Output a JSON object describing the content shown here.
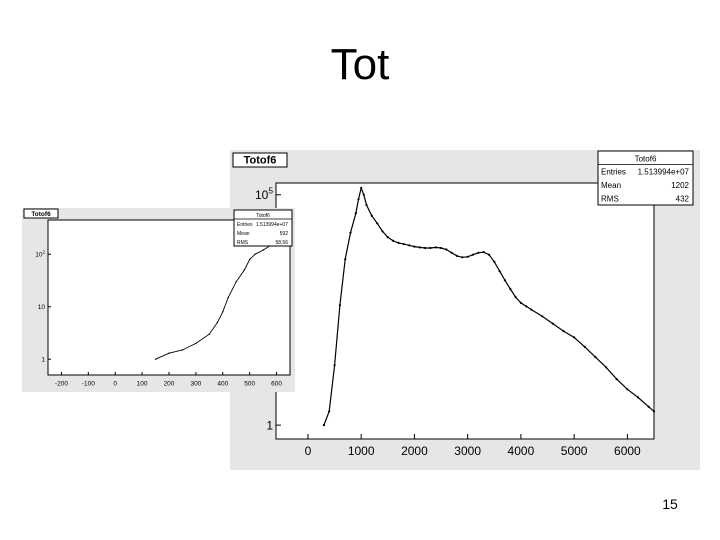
{
  "slide": {
    "title": "Tot",
    "page_number": "15"
  },
  "chart_data": [
    {
      "type": "line",
      "title": "Totof6",
      "stats": {
        "name": "Totof6",
        "labels": [
          "Entries",
          "Mean",
          "RMS"
        ],
        "values": [
          "1.513994e+07",
          "1202",
          "432"
        ]
      },
      "xlim": [
        -600,
        6500
      ],
      "x_ticks": [
        0,
        1000,
        2000,
        3000,
        4000,
        5000,
        6000
      ],
      "y_scale": "log",
      "ylim": [
        0.5,
        180000
      ],
      "y_ticks": [
        1,
        100000
      ],
      "y_tick_labels": [
        "1",
        "10^5"
      ],
      "color": "#000000",
      "x": [
        300,
        400,
        500,
        600,
        700,
        800,
        900,
        950,
        1000,
        1050,
        1100,
        1200,
        1300,
        1400,
        1500,
        1600,
        1700,
        1800,
        1900,
        2000,
        2100,
        2200,
        2300,
        2400,
        2500,
        2600,
        2700,
        2800,
        2900,
        3000,
        3100,
        3200,
        3300,
        3400,
        3500,
        3600,
        3700,
        3800,
        3900,
        4000,
        4100,
        4200,
        4400,
        4600,
        4800,
        5000,
        5200,
        5400,
        5600,
        5800,
        6000,
        6200,
        6400,
        6500
      ],
      "y": [
        1,
        2,
        20,
        400,
        4000,
        15000,
        40000,
        80000,
        140000,
        100000,
        60000,
        35000,
        24000,
        16000,
        12000,
        10000,
        9000,
        8500,
        8000,
        7500,
        7200,
        7000,
        7000,
        7200,
        7000,
        6500,
        5500,
        4700,
        4400,
        4500,
        5000,
        5500,
        5700,
        5000,
        3500,
        2200,
        1400,
        900,
        600,
        450,
        380,
        320,
        230,
        160,
        110,
        80,
        50,
        30,
        18,
        10,
        6,
        4,
        2.5,
        2
      ]
    },
    {
      "type": "line",
      "title": "Totof6",
      "stats": {
        "name": "Totof6",
        "labels": [
          "Entries",
          "Mean",
          "RMS"
        ],
        "values": [
          "1.513994e+07",
          "592",
          "58.56"
        ]
      },
      "xlim": [
        -250,
        650
      ],
      "x_ticks": [
        -200,
        -100,
        0,
        100,
        200,
        300,
        400,
        500,
        600
      ],
      "y_scale": "log",
      "ylim": [
        0.5,
        450
      ],
      "y_ticks": [
        1,
        10,
        100
      ],
      "y_tick_labels": [
        "1",
        "10",
        "10^2"
      ],
      "color": "#000000",
      "x": [
        150,
        200,
        250,
        300,
        350,
        380,
        400,
        420,
        450,
        480,
        500,
        520,
        550,
        580,
        600,
        620,
        640
      ],
      "y": [
        1,
        1.3,
        1.5,
        2,
        3,
        5,
        8,
        15,
        30,
        50,
        80,
        100,
        120,
        150,
        170,
        200,
        250
      ]
    }
  ]
}
